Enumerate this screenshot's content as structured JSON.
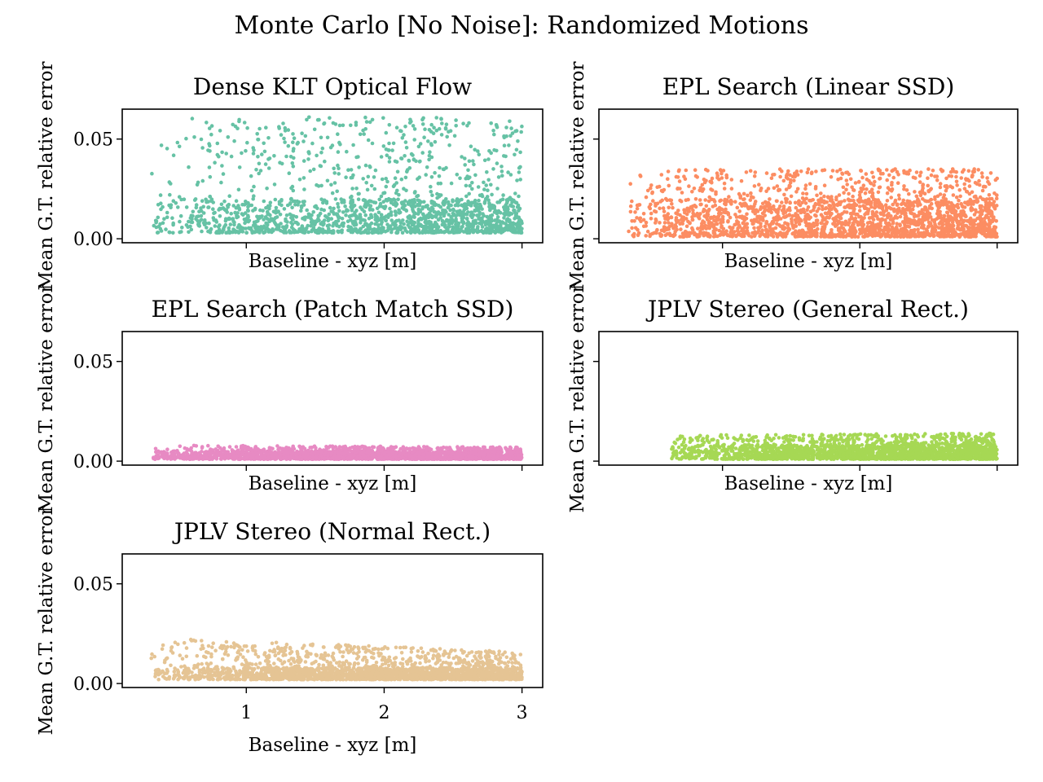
{
  "figure": {
    "title": "Monte Carlo [No Noise]: Randomized Motions"
  },
  "chart_data": [
    {
      "type": "scatter",
      "title": "Dense KLT Optical Flow",
      "xlabel": "Baseline - xyz [m]",
      "ylabel": "Mean G.T. relative error",
      "xlim": [
        0.1,
        3.15
      ],
      "ylim": [
        -0.002,
        0.065
      ],
      "x_ticks": [
        1,
        2,
        3
      ],
      "x_tick_labels": [],
      "y_ticks": [
        0.0,
        0.05
      ],
      "y_tick_labels": [
        "0.00",
        "0.05"
      ],
      "grid": false,
      "color": "#66c2a5",
      "series": [
        {
          "points": {
            "x_range": [
              0.3,
              3.0
            ],
            "y_range": [
              0.003,
              0.061
            ],
            "ceiling_start": 0.061,
            "ceiling_end": 0.061,
            "count": 1800,
            "dense_low": 0.02
          }
        }
      ]
    },
    {
      "type": "scatter",
      "title": "EPL Search (Linear SSD)",
      "xlabel": "Baseline - xyz [m]",
      "ylabel": "Mean G.T. relative error",
      "xlim": [
        0.1,
        3.15
      ],
      "ylim": [
        -0.002,
        0.065
      ],
      "x_ticks": [
        1,
        2,
        3
      ],
      "x_tick_labels": [],
      "y_ticks": [
        0.0,
        0.05
      ],
      "y_tick_labels": [],
      "grid": false,
      "color": "#fc8d62",
      "series": [
        {
          "points": {
            "x_range": [
              0.3,
              3.0
            ],
            "y_range": [
              0.001,
              0.035
            ],
            "ceiling_start": 0.035,
            "ceiling_end": 0.035,
            "count": 2200,
            "dense_low": 0.02
          }
        }
      ]
    },
    {
      "type": "scatter",
      "title": "EPL Search (Patch Match SSD)",
      "xlabel": "Baseline - xyz [m]",
      "ylabel": "Mean G.T. relative error",
      "xlim": [
        0.1,
        3.15
      ],
      "ylim": [
        -0.002,
        0.065
      ],
      "x_ticks": [
        1,
        2,
        3
      ],
      "x_tick_labels": [],
      "y_ticks": [
        0.0,
        0.05
      ],
      "y_tick_labels": [
        "0.00",
        "0.05"
      ],
      "grid": false,
      "color": "#e78ac3",
      "series": [
        {
          "points": {
            "x_range": [
              0.3,
              3.0
            ],
            "y_range": [
              0.001,
              0.008
            ],
            "ceiling_start": 0.008,
            "ceiling_end": 0.007,
            "count": 2200,
            "dense_low": 0.005
          }
        }
      ]
    },
    {
      "type": "scatter",
      "title": "JPLV Stereo (General Rect.)",
      "xlabel": "Baseline - xyz [m]",
      "ylabel": "Mean G.T. relative error",
      "xlim": [
        0.1,
        3.15
      ],
      "ylim": [
        -0.002,
        0.065
      ],
      "x_ticks": [
        1,
        2,
        3
      ],
      "x_tick_labels": [],
      "y_ticks": [
        0.0,
        0.05
      ],
      "y_tick_labels": [],
      "grid": false,
      "color": "#a6d854",
      "series": [
        {
          "points": {
            "x_range": [
              0.6,
              3.0
            ],
            "y_range": [
              0.001,
              0.014
            ],
            "ceiling_start": 0.013,
            "ceiling_end": 0.014,
            "count": 2200,
            "dense_low": 0.008
          }
        }
      ]
    },
    {
      "type": "scatter",
      "title": "JPLV Stereo (Normal Rect.)",
      "xlabel": "Baseline - xyz [m]",
      "ylabel": "Mean G.T. relative error",
      "xlim": [
        0.1,
        3.15
      ],
      "ylim": [
        -0.002,
        0.065
      ],
      "x_ticks": [
        1,
        2,
        3
      ],
      "x_tick_labels": [
        "1",
        "2",
        "3"
      ],
      "y_ticks": [
        0.0,
        0.05
      ],
      "y_tick_labels": [
        "0.00",
        "0.05"
      ],
      "grid": false,
      "color": "#e5c494",
      "series": [
        {
          "points": {
            "x_range": [
              0.3,
              3.0
            ],
            "y_range": [
              0.002,
              0.023
            ],
            "ceiling_start": 0.023,
            "ceiling_end": 0.016,
            "count": 2200,
            "dense_low": 0.008
          }
        }
      ]
    }
  ]
}
